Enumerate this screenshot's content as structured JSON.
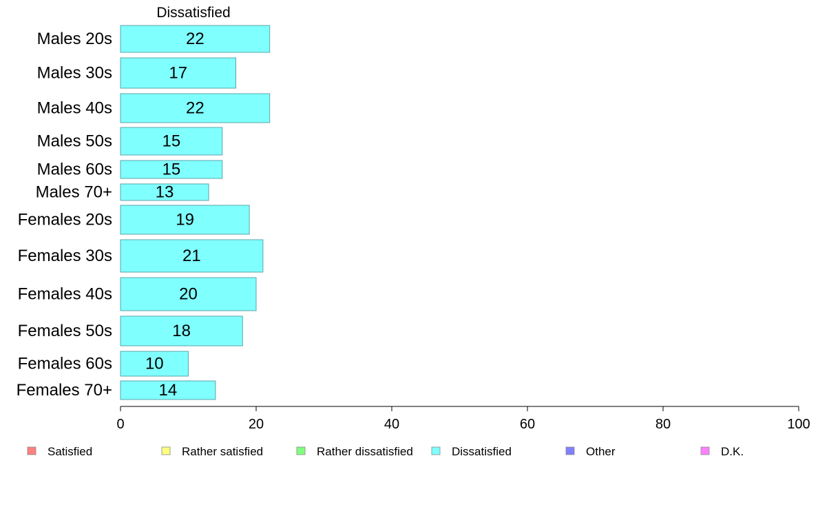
{
  "chart_data": {
    "type": "bar",
    "orientation": "horizontal",
    "panel_title": "Dissatisfied",
    "categories": [
      "Males 20s",
      "Males 30s",
      "Males 40s",
      "Males 50s",
      "Males 60s",
      "Males 70+",
      "Females 20s",
      "Females 30s",
      "Females 40s",
      "Females 50s",
      "Females 60s",
      "Females 70+"
    ],
    "values": [
      22,
      17,
      22,
      15,
      15,
      13,
      19,
      21,
      20,
      18,
      10,
      14
    ],
    "value_labels": [
      "22",
      "17",
      "22",
      "15",
      "15",
      "13",
      "19",
      "21",
      "20",
      "18",
      "10",
      "14"
    ],
    "xlim": [
      0,
      100
    ],
    "x_ticks": [
      0,
      20,
      40,
      60,
      80,
      100
    ],
    "x_tick_labels": [
      "0",
      "20",
      "40",
      "60",
      "80",
      "100"
    ],
    "bar_color": "#80ffff",
    "bar_border": "#5aa5a8",
    "grid": false,
    "legend_placement": "bottom",
    "legend": [
      {
        "label": "Satisfied",
        "color": "#ff8080"
      },
      {
        "label": "Rather satisfied",
        "color": "#ffff80"
      },
      {
        "label": "Rather dissatisfied",
        "color": "#80ff80"
      },
      {
        "label": "Dissatisfied",
        "color": "#80ffff"
      },
      {
        "label": "Other",
        "color": "#8080ff"
      },
      {
        "label": "D.K.",
        "color": "#ff80ff"
      }
    ]
  }
}
